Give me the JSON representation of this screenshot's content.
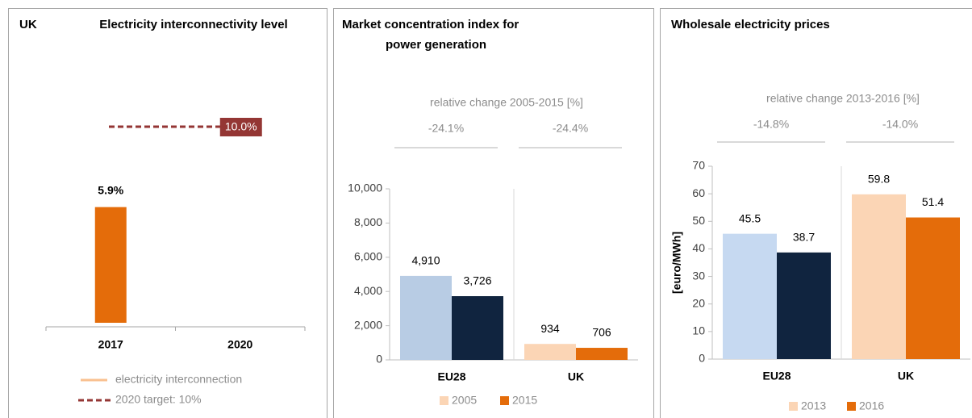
{
  "chart_data": [
    {
      "type": "bar",
      "label": "UK",
      "title": "Electricity interconnectivity level",
      "categories": [
        "2017",
        "2020"
      ],
      "series": [
        {
          "name": "electricity interconnection",
          "color": "#e46c0a",
          "legend_color": "#f9c08f",
          "values": [
            5.9,
            null
          ],
          "value_labels": [
            "5.9%",
            null
          ]
        },
        {
          "name": "2020 target: 10%",
          "color": "#943634",
          "style": "dashed",
          "values": [
            null,
            10.0
          ],
          "value_labels": [
            null,
            "10.0%"
          ]
        }
      ]
    },
    {
      "type": "bar",
      "title": [
        "Market concentration index for",
        "power generation"
      ],
      "subtitle": "relative change 2005-2015 [%]",
      "changes": [
        "-24.1%",
        "-24.4%"
      ],
      "categories": [
        "EU28",
        "UK"
      ],
      "series": [
        {
          "name": "2005",
          "color": "#fbd5b5",
          "colors": [
            "#b8cce4",
            "#fbd5b5"
          ],
          "values": [
            4910,
            934
          ],
          "value_labels": [
            "4,910",
            "934"
          ]
        },
        {
          "name": "2015",
          "color": "#e46c0a",
          "colors": [
            "#10243f",
            "#e46c0a"
          ],
          "values": [
            3726,
            706
          ],
          "value_labels": [
            "3,726",
            "706"
          ]
        }
      ],
      "ylim": [
        0,
        10000
      ],
      "yticks": [
        0,
        {
          "value": 2000,
          "label": "2,000"
        },
        {
          "value": 4000,
          "label": "4,000"
        },
        {
          "value": 6000,
          "label": "6,000"
        },
        {
          "value": 8000,
          "label": "8,000"
        },
        {
          "value": 10000,
          "label": "10,000"
        }
      ]
    },
    {
      "type": "bar",
      "title": "Wholesale electricity prices",
      "subtitle": "relative change 2013-2016 [%]",
      "changes": [
        "-14.8%",
        "-14.0%"
      ],
      "ylabel": "[euro/MWh]",
      "categories": [
        "EU28",
        "UK"
      ],
      "series": [
        {
          "name": "2013",
          "color": "#fbd5b5",
          "colors": [
            "#c6d9f1",
            "#fbd5b5"
          ],
          "values": [
            45.5,
            59.8
          ]
        },
        {
          "name": "2016",
          "color": "#e46c0a",
          "colors": [
            "#10243f",
            "#e46c0a"
          ],
          "values": [
            38.7,
            51.4
          ]
        }
      ],
      "ylim": [
        0,
        70
      ],
      "yticks": [
        0,
        10,
        20,
        30,
        40,
        50,
        60,
        70
      ]
    }
  ]
}
